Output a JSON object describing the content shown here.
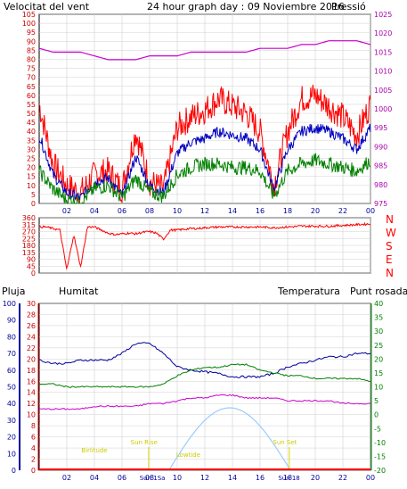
{
  "header": {
    "left_label": "Velocitat del vent",
    "title": "24 hour graph day : 09 Noviembre 2016",
    "right_label": "Pressió"
  },
  "colors": {
    "frame": "#000000",
    "grid": "#d0d0d0",
    "red": "#ff0000",
    "blue": "#0000c0",
    "green": "#008000",
    "magenta": "#cc00cc",
    "darkblue": "#000099",
    "lightblue": "#99ccff",
    "yellow": "#dddd00",
    "left_axis_text": "#cc0000",
    "right_axis_text": "#aa00aa"
  },
  "wind_panel": {
    "y_ticks": [
      "0",
      "5",
      "10",
      "15",
      "20",
      "25",
      "30",
      "35",
      "40",
      "45",
      "50",
      "55",
      "60",
      "65",
      "70",
      "75",
      "80",
      "85",
      "90",
      "95",
      "100",
      "105"
    ],
    "pressure_ticks": [
      "975",
      "980",
      "985",
      "990",
      "995",
      "1000",
      "1005",
      "1010",
      "1015",
      "1020",
      "1025"
    ]
  },
  "direction_panel": {
    "y_ticks": [
      "0",
      "45",
      "90",
      "135",
      "180",
      "225",
      "270",
      "315",
      "360"
    ],
    "compass": [
      "N",
      "W",
      "S",
      "E",
      "N"
    ]
  },
  "lower_panel": {
    "labels": {
      "pluja": "Pluja",
      "humitat": "Humitat",
      "temperatura": "Temperatura",
      "punt_rosada": "Punt rosada"
    },
    "rain_ticks": [
      "0",
      "2",
      "4",
      "6",
      "8",
      "10",
      "12",
      "14",
      "16",
      "18",
      "20",
      "22",
      "24",
      "26",
      "28",
      "30"
    ],
    "hum_ticks": [
      "0",
      "10",
      "20",
      "30",
      "40",
      "50",
      "60",
      "70",
      "80",
      "90",
      "100"
    ],
    "temp_ticks": [
      "-20",
      "-15",
      "-10",
      "-5",
      "0",
      "5",
      "10",
      "15",
      "20",
      "25",
      "30",
      "35",
      "40"
    ],
    "annotations": {
      "moonrise": "Birlitude",
      "sunrise": "Sun Rise",
      "moonset": "Lowtide",
      "sunset": "Sun Set"
    }
  },
  "x_axis": {
    "ticks": [
      "02",
      "04",
      "06",
      "08",
      "10",
      "12",
      "14",
      "16",
      "18",
      "20",
      "22",
      "00"
    ],
    "lower_extra": [
      "Sun 1Sa",
      "Sun 18"
    ]
  },
  "chart_data": [
    {
      "type": "line",
      "title": "Velocitat del vent",
      "x": [
        0,
        1,
        2,
        3,
        4,
        5,
        6,
        7,
        8,
        9,
        10,
        11,
        12,
        13,
        14,
        15,
        16,
        17,
        18,
        19,
        20,
        21,
        22,
        23,
        24
      ],
      "series": [
        {
          "name": "Velocitat del vent",
          "values": [
            55,
            22,
            10,
            6,
            16,
            18,
            8,
            40,
            12,
            8,
            42,
            48,
            52,
            58,
            54,
            50,
            40,
            10,
            40,
            58,
            60,
            54,
            48,
            38,
            55
          ]
        },
        {
          "name": "Velocitat del vent",
          "values": [
            38,
            16,
            6,
            3,
            12,
            14,
            4,
            26,
            10,
            6,
            28,
            34,
            36,
            40,
            38,
            36,
            30,
            8,
            30,
            40,
            42,
            40,
            36,
            30,
            42
          ]
        },
        {
          "name": "Velocitat del vent",
          "values": [
            18,
            8,
            2,
            1,
            8,
            10,
            3,
            14,
            6,
            4,
            16,
            20,
            22,
            22,
            20,
            20,
            18,
            4,
            18,
            22,
            24,
            22,
            20,
            18,
            24
          ]
        },
        {
          "name": "Pressió",
          "values": [
            1016,
            1015,
            1015,
            1015,
            1014,
            1013,
            1013,
            1013,
            1014,
            1014,
            1014,
            1015,
            1015,
            1015,
            1015,
            1015,
            1016,
            1016,
            1016,
            1017,
            1017,
            1018,
            1018,
            1018,
            1017
          ]
        }
      ],
      "ylim": [
        0,
        105
      ],
      "y2lim": [
        975,
        1025
      ]
    },
    {
      "type": "scatter",
      "title": "Direction",
      "x": [
        0,
        0.5,
        1,
        1.5,
        2,
        2.5,
        3,
        3.5,
        4,
        4.5,
        5,
        5.5,
        6,
        6.5,
        7,
        7.5,
        8,
        8.5,
        9,
        9.5,
        10,
        10.5,
        11,
        11.5,
        12,
        13,
        14,
        15,
        16,
        17,
        18,
        19,
        20,
        21,
        22,
        23,
        24
      ],
      "values": [
        300,
        300,
        290,
        280,
        20,
        250,
        40,
        300,
        300,
        280,
        260,
        250,
        255,
        260,
        255,
        265,
        270,
        260,
        220,
        280,
        280,
        285,
        290,
        290,
        295,
        300,
        300,
        300,
        300,
        295,
        300,
        305,
        305,
        305,
        310,
        315,
        320
      ],
      "ylim": [
        0,
        360
      ]
    },
    {
      "type": "line",
      "title": "Humitat / Temperatura / Punt rosada",
      "x": [
        0,
        1,
        2,
        3,
        4,
        5,
        6,
        7,
        8,
        9,
        10,
        11,
        12,
        13,
        14,
        15,
        16,
        17,
        18,
        19,
        20,
        21,
        22,
        23,
        24
      ],
      "series": [
        {
          "name": "Humitat",
          "values": [
            66,
            64,
            64,
            66,
            66,
            66,
            70,
            76,
            76,
            70,
            62,
            60,
            59,
            58,
            56,
            56,
            56,
            58,
            62,
            64,
            66,
            68,
            68,
            70,
            70
          ]
        },
        {
          "name": "Temperatura",
          "values": [
            11,
            11,
            10,
            10,
            10,
            10,
            10,
            10,
            10,
            11,
            14,
            16,
            17,
            17,
            18,
            18,
            16,
            15,
            14,
            14,
            13,
            13,
            13,
            13,
            12
          ]
        },
        {
          "name": "Punt rosada",
          "values": [
            2,
            2,
            2,
            2,
            3,
            3,
            3,
            3,
            4,
            4,
            5,
            6,
            6,
            7,
            7,
            6,
            6,
            6,
            5,
            5,
            5,
            5,
            4,
            4,
            4
          ]
        },
        {
          "name": "Pluja",
          "values": [
            0,
            0,
            0,
            0,
            0,
            0,
            0,
            0,
            0,
            0,
            0,
            0,
            0,
            0,
            0,
            0,
            0,
            0,
            0,
            0,
            0,
            0,
            0,
            0,
            0
          ]
        }
      ],
      "ylim": [
        0,
        100
      ],
      "y2lim": [
        -20,
        40
      ]
    }
  ]
}
